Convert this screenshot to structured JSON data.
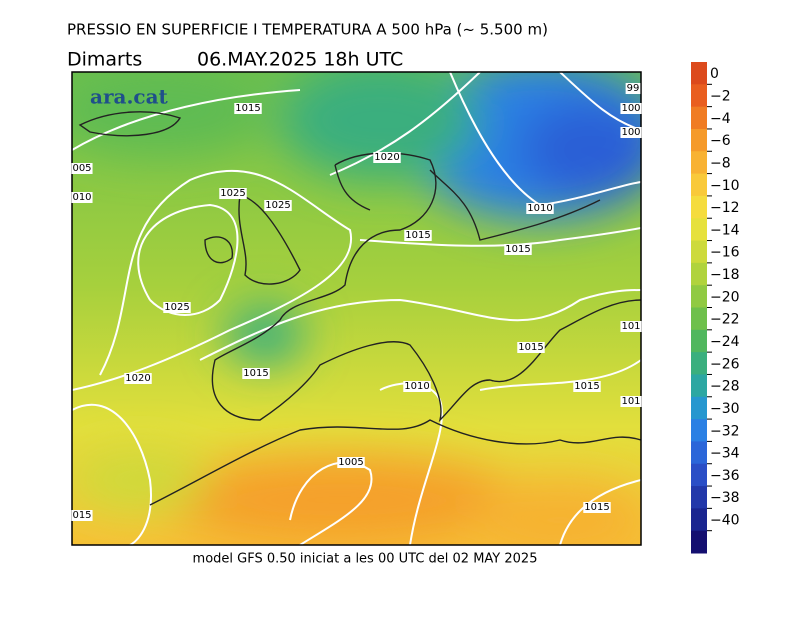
{
  "header": {
    "title": "PRESSIO EN SUPERFICIE I TEMPERATURA A 500 hPa (~ 5.500 m)",
    "day": "Dimarts",
    "date": "06.MAY.2025 18h UTC"
  },
  "logo": "ara.cat",
  "footer": "model GFS 0.50 iniciat a les 00 UTC del 02 MAY 2025",
  "colorbar": {
    "labels": [
      "0",
      "−2",
      "−4",
      "−6",
      "−8",
      "−10",
      "−12",
      "−14",
      "−16",
      "−18",
      "−20",
      "−22",
      "−24",
      "−26",
      "−28",
      "−30",
      "−32",
      "−34",
      "−36",
      "−38",
      "−40"
    ],
    "colors": [
      "#dc4a1c",
      "#e95e1f",
      "#f07c23",
      "#f59a2a",
      "#f8b233",
      "#f9c93a",
      "#f5dc3e",
      "#e6e13c",
      "#cdda3b",
      "#b0d33d",
      "#90ca42",
      "#6ec04b",
      "#50b75e",
      "#3aaf7e",
      "#2ca7a2",
      "#2697cf",
      "#2a80e4",
      "#2b66d9",
      "#2a4ec6",
      "#2238aa",
      "#1a2590",
      "#140f70"
    ]
  },
  "isobars": {
    "labels": [
      "1015",
      "1020",
      "1025",
      "1025",
      "1015",
      "1015",
      "1010",
      "1025",
      "1020",
      "1015",
      "1015",
      "1010",
      "1015",
      "1005",
      "1015",
      "005",
      "010",
      "015",
      "99",
      "100",
      "100",
      "101",
      "101"
    ]
  }
}
